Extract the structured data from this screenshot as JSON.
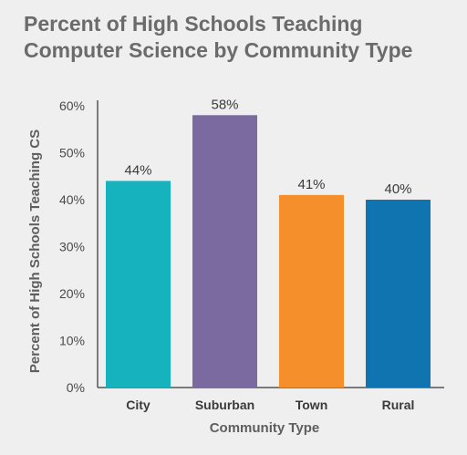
{
  "chart_data": {
    "type": "bar",
    "title_lines": [
      "Percent of High Schools Teaching",
      "Computer Science by Community Type"
    ],
    "xlabel": "Community Type",
    "ylabel": "Percent of High Schools Teaching CS",
    "categories": [
      "City",
      "Suburban",
      "Town",
      "Rural"
    ],
    "values": [
      44,
      58,
      41,
      40
    ],
    "data_labels": [
      "44%",
      "58%",
      "41%",
      "40%"
    ],
    "colors": [
      "#16b3be",
      "#7a6aa0",
      "#f58f2b",
      "#0f74b0"
    ],
    "ylim": [
      0,
      60
    ],
    "yticks": [
      0,
      10,
      20,
      30,
      40,
      50,
      60
    ],
    "ytick_labels": [
      "0%",
      "10%",
      "20%",
      "30%",
      "40%",
      "50%",
      "60%"
    ],
    "grid": false,
    "legend": "none"
  }
}
